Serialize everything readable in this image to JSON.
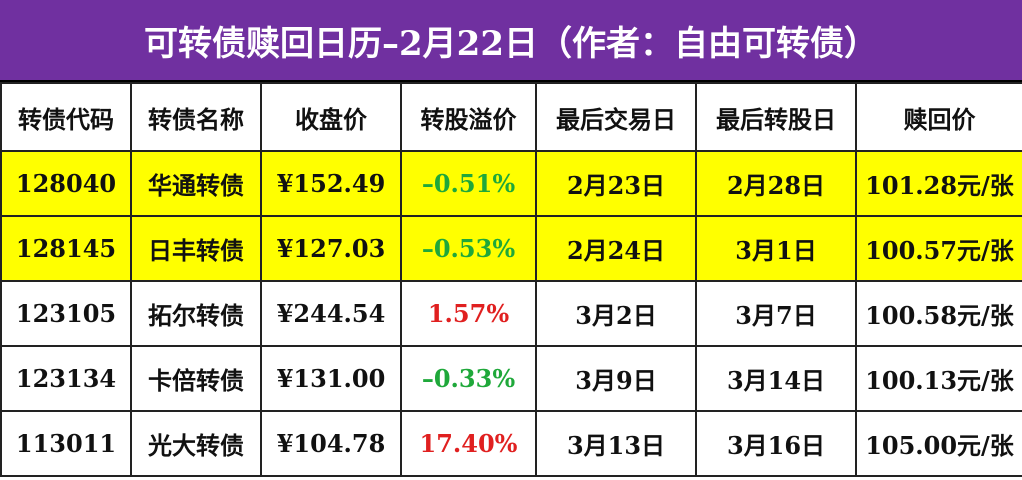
{
  "header": {
    "title": "可转债赎回日历–2月22日（作者：自由可转债）"
  },
  "table": {
    "columns": [
      "转债代码",
      "转债名称",
      "收盘价",
      "转股溢价",
      "最后交易日",
      "最后转股日",
      "赎回价"
    ],
    "rows": [
      [
        "128040",
        "华通转债",
        "¥152.49",
        "–0.51%",
        "2月23日",
        "2月28日",
        "101.28元/张"
      ],
      [
        "128145",
        "日丰转债",
        "¥127.03",
        "–0.53%",
        "2月24日",
        "3月1日",
        "100.57元/张"
      ],
      [
        "123105",
        "拓尔转债",
        "¥244.54",
        "1.57%",
        "3月2日",
        "3月7日",
        "100.58元/张"
      ],
      [
        "123134",
        "卡倍转债",
        "¥131.00",
        "–0.33%",
        "3月9日",
        "3月14日",
        "100.13元/张"
      ],
      [
        "113011",
        "光大转债",
        "¥104.78",
        "17.40%",
        "3月13日",
        "3月16日",
        "105.00元/张"
      ]
    ]
  }
}
